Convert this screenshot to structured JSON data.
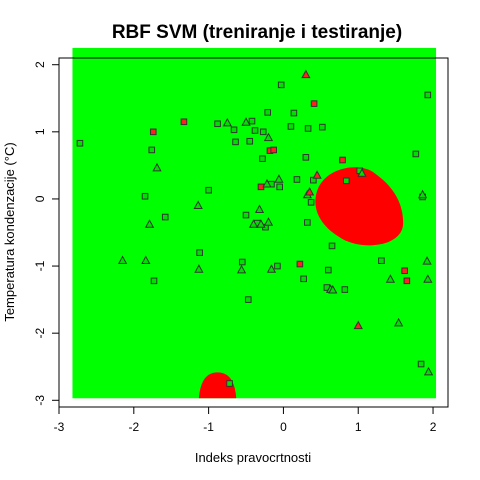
{
  "chart_data": {
    "type": "scatter",
    "title": "RBF SVM (treniranje i testiranje)",
    "xlabel": "Indeks pravocrtnosti",
    "ylabel": "Temperatura kondenzacije (°C)",
    "xlim": [
      -3,
      2.2
    ],
    "ylim": [
      -3.1,
      2.1
    ],
    "xticks": [
      -3,
      -2,
      -1,
      0,
      1,
      2
    ],
    "yticks": [
      -3,
      -2,
      -1,
      0,
      1,
      2
    ],
    "grid": false,
    "colors": {
      "region_a": "#00ff00",
      "region_b": "#ff0000",
      "point_a": "#00e000",
      "point_b": "#ff2020",
      "edge": "#333333"
    },
    "regions": [
      {
        "class": "b",
        "shape": "blob",
        "center": [
          0.98,
          -0.15
        ],
        "rx": 0.62,
        "ry": 0.6
      },
      {
        "class": "b",
        "shape": "bump",
        "center": [
          -0.88,
          -2.82
        ],
        "rx": 0.25,
        "ry": 0.2
      }
    ],
    "series": [
      {
        "marker": "square",
        "points": [
          [
            -2.72,
            0.83,
            "a"
          ],
          [
            -1.85,
            0.04,
            "a"
          ],
          [
            -1.76,
            0.73,
            "a"
          ],
          [
            -1.73,
            -1.22,
            "a"
          ],
          [
            -1.74,
            1.0,
            "b"
          ],
          [
            -1.58,
            -0.27,
            "a"
          ],
          [
            -1.33,
            1.15,
            "b"
          ],
          [
            -1.12,
            -0.8,
            "a"
          ],
          [
            -1.0,
            0.13,
            "a"
          ],
          [
            -0.88,
            1.12,
            "a"
          ],
          [
            -0.66,
            1.03,
            "a"
          ],
          [
            -0.64,
            0.85,
            "a"
          ],
          [
            -0.55,
            -0.94,
            "a"
          ],
          [
            -0.5,
            -0.24,
            "a"
          ],
          [
            -0.47,
            -1.5,
            "a"
          ],
          [
            -0.45,
            0.86,
            "a"
          ],
          [
            -0.42,
            1.16,
            "a"
          ],
          [
            -0.38,
            1.02,
            "a"
          ],
          [
            -0.35,
            -0.36,
            "a"
          ],
          [
            -0.3,
            0.18,
            "b"
          ],
          [
            -0.27,
            1.0,
            "a"
          ],
          [
            -0.28,
            0.6,
            "a"
          ],
          [
            -0.24,
            -0.42,
            "a"
          ],
          [
            -0.21,
            1.29,
            "a"
          ],
          [
            -0.18,
            0.72,
            "b"
          ],
          [
            -0.13,
            0.73,
            "b"
          ],
          [
            -0.16,
            0.22,
            "a"
          ],
          [
            -0.08,
            -1.0,
            "a"
          ],
          [
            -0.05,
            0.18,
            "a"
          ],
          [
            -0.03,
            1.7,
            "a"
          ],
          [
            0.1,
            1.08,
            "a"
          ],
          [
            0.14,
            1.28,
            "a"
          ],
          [
            0.18,
            0.29,
            "a"
          ],
          [
            0.22,
            -0.97,
            "b"
          ],
          [
            0.27,
            -1.19,
            "a"
          ],
          [
            0.3,
            0.62,
            "a"
          ],
          [
            0.32,
            -0.35,
            "a"
          ],
          [
            0.33,
            1.05,
            "a"
          ],
          [
            0.37,
            -0.05,
            "a"
          ],
          [
            0.4,
            0.28,
            "a"
          ],
          [
            0.41,
            1.42,
            "b"
          ],
          [
            0.52,
            1.07,
            "a"
          ],
          [
            0.58,
            -1.32,
            "a"
          ],
          [
            0.6,
            -1.06,
            "a"
          ],
          [
            0.65,
            -0.7,
            "a"
          ],
          [
            0.79,
            0.58,
            "b"
          ],
          [
            0.82,
            -1.35,
            "a"
          ],
          [
            0.84,
            0.27,
            "a"
          ],
          [
            1.02,
            0.42,
            "a"
          ],
          [
            1.31,
            -0.92,
            "a"
          ],
          [
            1.62,
            -1.07,
            "b"
          ],
          [
            1.65,
            -1.22,
            "b"
          ],
          [
            1.77,
            0.67,
            "a"
          ],
          [
            1.84,
            -2.46,
            "a"
          ],
          [
            1.86,
            0.03,
            "a"
          ],
          [
            1.93,
            1.55,
            "a"
          ],
          [
            -0.72,
            -2.75,
            "a"
          ]
        ]
      },
      {
        "marker": "triangle",
        "points": [
          [
            -2.15,
            -0.92,
            "a"
          ],
          [
            -1.84,
            -0.92,
            "a"
          ],
          [
            -1.79,
            -0.38,
            "a"
          ],
          [
            -1.69,
            0.46,
            "a"
          ],
          [
            -1.13,
            -1.05,
            "a"
          ],
          [
            -1.14,
            -0.1,
            "a"
          ],
          [
            -0.75,
            1.13,
            "a"
          ],
          [
            -0.56,
            -1.06,
            "a"
          ],
          [
            -0.5,
            1.14,
            "a"
          ],
          [
            -0.4,
            -0.38,
            "a"
          ],
          [
            -0.32,
            -0.16,
            "a"
          ],
          [
            -0.3,
            -0.38,
            "a"
          ],
          [
            -0.22,
            0.22,
            "a"
          ],
          [
            -0.2,
            -0.35,
            "a"
          ],
          [
            -0.2,
            0.91,
            "a"
          ],
          [
            -0.16,
            -1.05,
            "a"
          ],
          [
            -0.06,
            0.29,
            "a"
          ],
          [
            0.3,
            1.85,
            "b"
          ],
          [
            0.32,
            0.06,
            "a"
          ],
          [
            0.63,
            -1.35,
            "a"
          ],
          [
            0.66,
            -1.36,
            "a"
          ],
          [
            1.0,
            -1.89,
            "b"
          ],
          [
            1.05,
            0.38,
            "a"
          ],
          [
            1.43,
            -1.2,
            "a"
          ],
          [
            1.54,
            -1.85,
            "a"
          ],
          [
            1.86,
            0.06,
            "a"
          ],
          [
            1.92,
            -0.93,
            "a"
          ],
          [
            1.93,
            -1.2,
            "a"
          ],
          [
            1.94,
            -2.58,
            "a"
          ],
          [
            0.45,
            0.35,
            "b"
          ],
          [
            0.35,
            0.1,
            "b"
          ]
        ]
      }
    ]
  }
}
